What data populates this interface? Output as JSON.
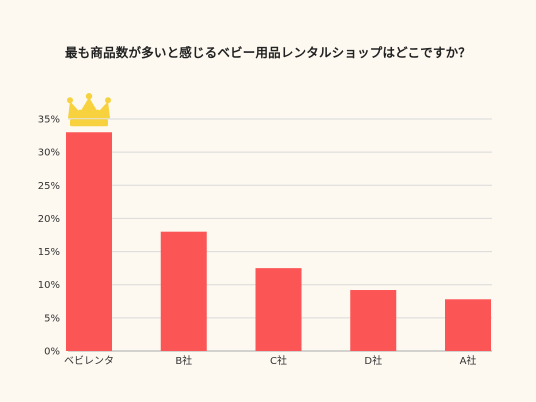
{
  "chart_data": {
    "type": "bar",
    "title": "最も商品数が多いと感じるベビー用品レンタルショップはどこですか？",
    "xlabel": "",
    "ylabel": "",
    "categories": [
      "ベビレンタ",
      "B社",
      "C社",
      "D社",
      "A社"
    ],
    "values": [
      33,
      18,
      12.5,
      9.2,
      7.8
    ],
    "unit": "%",
    "ylim": [
      0,
      35
    ],
    "yticks": [
      0,
      5,
      10,
      15,
      20,
      25,
      30,
      35
    ],
    "ytick_labels": [
      "0%",
      "5%",
      "10%",
      "15%",
      "20%",
      "25%",
      "30%",
      "35%"
    ],
    "grid": true,
    "legend": "none",
    "bar_color": "#fc5555",
    "grid_color": "#d9d9d9",
    "axis_color": "#aaaaaa",
    "crown_on_category": "ベビレンタ",
    "crown_icon": "crown-icon",
    "crown_color": "#f7d23e"
  }
}
